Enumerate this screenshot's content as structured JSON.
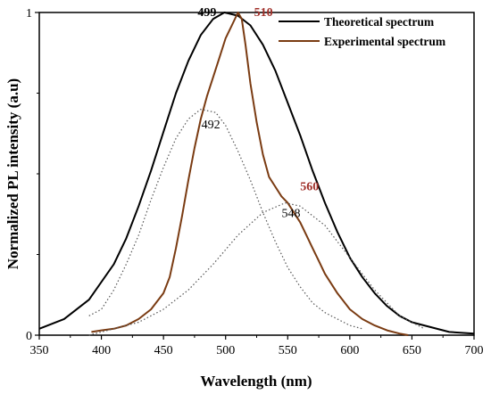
{
  "chart_data": {
    "type": "line",
    "xlabel": "Wavelength (nm)",
    "ylabel": "Normalized PL intensity (a.u)",
    "xlim": [
      350,
      700
    ],
    "ylim": [
      0,
      1
    ],
    "x_ticks": [
      "350",
      "400",
      "450",
      "500",
      "550",
      "600",
      "650",
      "700"
    ],
    "y_ticks": [
      "0",
      "1"
    ],
    "legend_position": "top-right",
    "series": [
      {
        "name": "Theoretical spectrum",
        "color": "#000000",
        "style": "solid",
        "x": [
          350,
          370,
          390,
          410,
          420,
          430,
          440,
          450,
          460,
          470,
          480,
          490,
          499,
          510,
          520,
          530,
          540,
          550,
          560,
          570,
          580,
          590,
          600,
          610,
          620,
          630,
          640,
          650,
          660,
          680,
          700
        ],
        "y": [
          0.02,
          0.05,
          0.11,
          0.22,
          0.3,
          0.4,
          0.51,
          0.63,
          0.75,
          0.85,
          0.93,
          0.98,
          1.0,
          0.99,
          0.96,
          0.9,
          0.82,
          0.72,
          0.62,
          0.51,
          0.41,
          0.32,
          0.24,
          0.18,
          0.13,
          0.09,
          0.06,
          0.04,
          0.03,
          0.01,
          0.005
        ]
      },
      {
        "name": "Experimental spectrum",
        "color": "#7a3b12",
        "style": "solid",
        "x": [
          392,
          400,
          410,
          420,
          430,
          440,
          450,
          455,
          460,
          465,
          470,
          475,
          480,
          485,
          490,
          495,
          500,
          505,
          510,
          513,
          516,
          520,
          525,
          530,
          535,
          540,
          545,
          550,
          555,
          560,
          565,
          570,
          575,
          580,
          590,
          600,
          610,
          620,
          630,
          640,
          647
        ],
        "y": [
          0.01,
          0.015,
          0.02,
          0.03,
          0.05,
          0.08,
          0.13,
          0.18,
          0.27,
          0.37,
          0.48,
          0.58,
          0.67,
          0.74,
          0.8,
          0.86,
          0.92,
          0.96,
          1.0,
          0.98,
          0.9,
          0.78,
          0.66,
          0.56,
          0.49,
          0.46,
          0.43,
          0.41,
          0.38,
          0.35,
          0.31,
          0.27,
          0.23,
          0.19,
          0.13,
          0.08,
          0.05,
          0.03,
          0.015,
          0.005,
          0.0
        ]
      },
      {
        "name": "",
        "color": "#555555",
        "style": "dotted",
        "x": [
          390,
          400,
          410,
          420,
          430,
          440,
          450,
          460,
          470,
          480,
          492,
          500,
          510,
          520,
          530,
          540,
          550,
          560,
          570,
          580,
          590,
          600,
          610
        ],
        "y": [
          0.06,
          0.08,
          0.14,
          0.22,
          0.31,
          0.42,
          0.52,
          0.61,
          0.67,
          0.7,
          0.69,
          0.65,
          0.57,
          0.48,
          0.38,
          0.29,
          0.21,
          0.15,
          0.1,
          0.07,
          0.05,
          0.03,
          0.02
        ]
      },
      {
        "name": "",
        "color": "#555555",
        "style": "dotted",
        "x": [
          390,
          410,
          430,
          450,
          470,
          490,
          510,
          530,
          548,
          560,
          580,
          600,
          620,
          640,
          660
        ],
        "y": [
          0.0,
          0.02,
          0.04,
          0.08,
          0.14,
          0.22,
          0.31,
          0.38,
          0.41,
          0.4,
          0.34,
          0.24,
          0.14,
          0.06,
          0.02
        ]
      }
    ],
    "annotations": [
      {
        "text": "499",
        "x": 499,
        "y": 1.0,
        "color": "#000000",
        "bold": true
      },
      {
        "text": "510",
        "x": 510,
        "y": 1.0,
        "color": "#a0302a",
        "bold": true
      },
      {
        "text": "492",
        "x": 492,
        "y": 0.69,
        "color": "#000000",
        "bold": false
      },
      {
        "text": "560",
        "x": 560,
        "y": 0.41,
        "color": "#a0302a",
        "bold": true
      },
      {
        "text": "548",
        "x": 548,
        "y": 0.41,
        "color": "#000000",
        "bold": false
      }
    ]
  }
}
